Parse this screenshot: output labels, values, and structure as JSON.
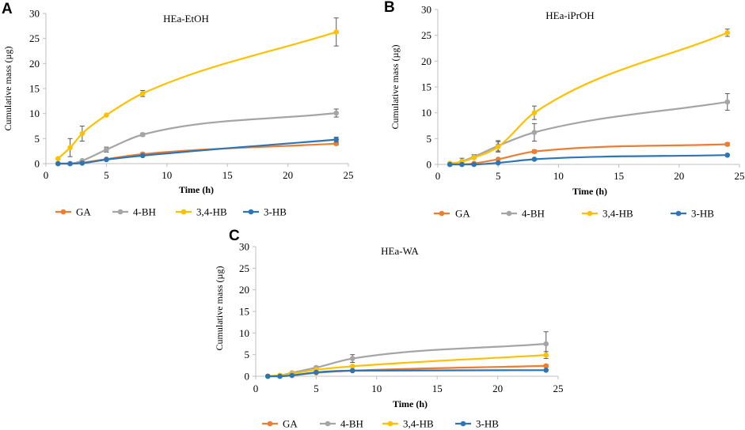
{
  "figure": {
    "series_colors": {
      "GA": "#ED7D31",
      "4-BH": "#A5A5A5",
      "3,4-HB": "#FFC000",
      "3-HB": "#2E75B6"
    }
  },
  "chart_data": [
    {
      "panel": "A",
      "type": "line",
      "title": "HEa-EtOH",
      "xlabel": "Time  (h)",
      "ylabel": "Cumulative  mass  (µg)",
      "xlim": [
        0,
        25
      ],
      "ylim": [
        0,
        30
      ],
      "xticks": [
        0,
        5,
        10,
        15,
        20,
        25
      ],
      "yticks": [
        0,
        5,
        10,
        15,
        20,
        25,
        30
      ],
      "x": [
        1,
        2,
        3,
        5,
        8,
        24
      ],
      "legend_position": "bottom",
      "series": [
        {
          "name": "GA",
          "values": [
            0,
            0,
            0.2,
            0.9,
            1.9,
            4.0
          ],
          "errors": [
            0,
            0,
            0,
            0,
            0.3,
            0.3
          ]
        },
        {
          "name": "4-BH",
          "values": [
            0,
            0,
            0.6,
            2.8,
            5.8,
            10.1
          ],
          "errors": [
            0,
            0,
            0,
            0.5,
            0.3,
            0.8
          ]
        },
        {
          "name": "3,4-HB",
          "values": [
            1.0,
            3.2,
            6.0,
            9.7,
            14.0,
            26.3
          ],
          "errors": [
            0,
            1.8,
            1.5,
            0,
            0.6,
            2.8
          ]
        },
        {
          "name": "3-HB",
          "values": [
            0,
            0,
            0.1,
            0.8,
            1.6,
            4.8
          ],
          "errors": [
            0,
            0,
            0,
            0,
            0,
            0.5
          ]
        }
      ]
    },
    {
      "panel": "B",
      "type": "line",
      "title": "HEa-iPrOH",
      "xlabel": "Time  (h)",
      "ylabel": "Cumulative  mass  (µg)",
      "xlim": [
        0,
        25
      ],
      "ylim": [
        0,
        30
      ],
      "xticks": [
        0,
        5,
        10,
        15,
        20,
        25
      ],
      "yticks": [
        0,
        5,
        10,
        15,
        20,
        25,
        30
      ],
      "x": [
        1,
        2,
        3,
        5,
        8,
        24
      ],
      "legend_position": "bottom",
      "series": [
        {
          "name": "GA",
          "values": [
            0,
            0,
            0.2,
            1.0,
            2.5,
            3.9
          ],
          "errors": [
            0,
            0,
            0,
            0,
            0.3,
            0.3
          ]
        },
        {
          "name": "4-BH",
          "values": [
            0,
            0.6,
            1.5,
            3.6,
            6.2,
            12.1
          ],
          "errors": [
            0,
            0.6,
            0.4,
            1.0,
            1.7,
            1.6
          ]
        },
        {
          "name": "3,4-HB",
          "values": [
            0.2,
            0.5,
            1.3,
            3.4,
            10.0,
            25.5
          ],
          "errors": [
            0,
            0,
            0,
            1.0,
            1.3,
            0.7
          ]
        },
        {
          "name": "3-HB",
          "values": [
            0,
            0,
            0,
            0.3,
            1.0,
            1.8
          ],
          "errors": [
            0,
            0,
            0,
            0,
            0,
            0
          ]
        }
      ]
    },
    {
      "panel": "C",
      "type": "line",
      "title": "HEa-WA",
      "xlabel": "Time  (h)",
      "ylabel": "Cumulative  mass  (µg)",
      "xlim": [
        0,
        25
      ],
      "ylim": [
        0,
        30
      ],
      "xticks": [
        0,
        5,
        10,
        15,
        20,
        25
      ],
      "yticks": [
        0,
        5,
        10,
        15,
        20,
        25,
        30
      ],
      "x": [
        1,
        2,
        3,
        5,
        8,
        24
      ],
      "legend_position": "bottom",
      "series": [
        {
          "name": "GA",
          "values": [
            0,
            0,
            0.2,
            0.8,
            1.3,
            2.4
          ],
          "errors": [
            0,
            0,
            0,
            0,
            0,
            0.3
          ]
        },
        {
          "name": "4-BH",
          "values": [
            0,
            0.2,
            0.8,
            2.0,
            4.1,
            7.5
          ],
          "errors": [
            0,
            0,
            0,
            0.3,
            0.9,
            2.8
          ]
        },
        {
          "name": "3,4-HB",
          "values": [
            0,
            0.2,
            0.6,
            1.5,
            2.3,
            4.9
          ],
          "errors": [
            0,
            0,
            0,
            0,
            0,
            0.8
          ]
        },
        {
          "name": "3-HB",
          "values": [
            0,
            0,
            0.2,
            0.9,
            1.3,
            1.4
          ],
          "errors": [
            0,
            0,
            0,
            0,
            0,
            0
          ]
        }
      ]
    }
  ]
}
